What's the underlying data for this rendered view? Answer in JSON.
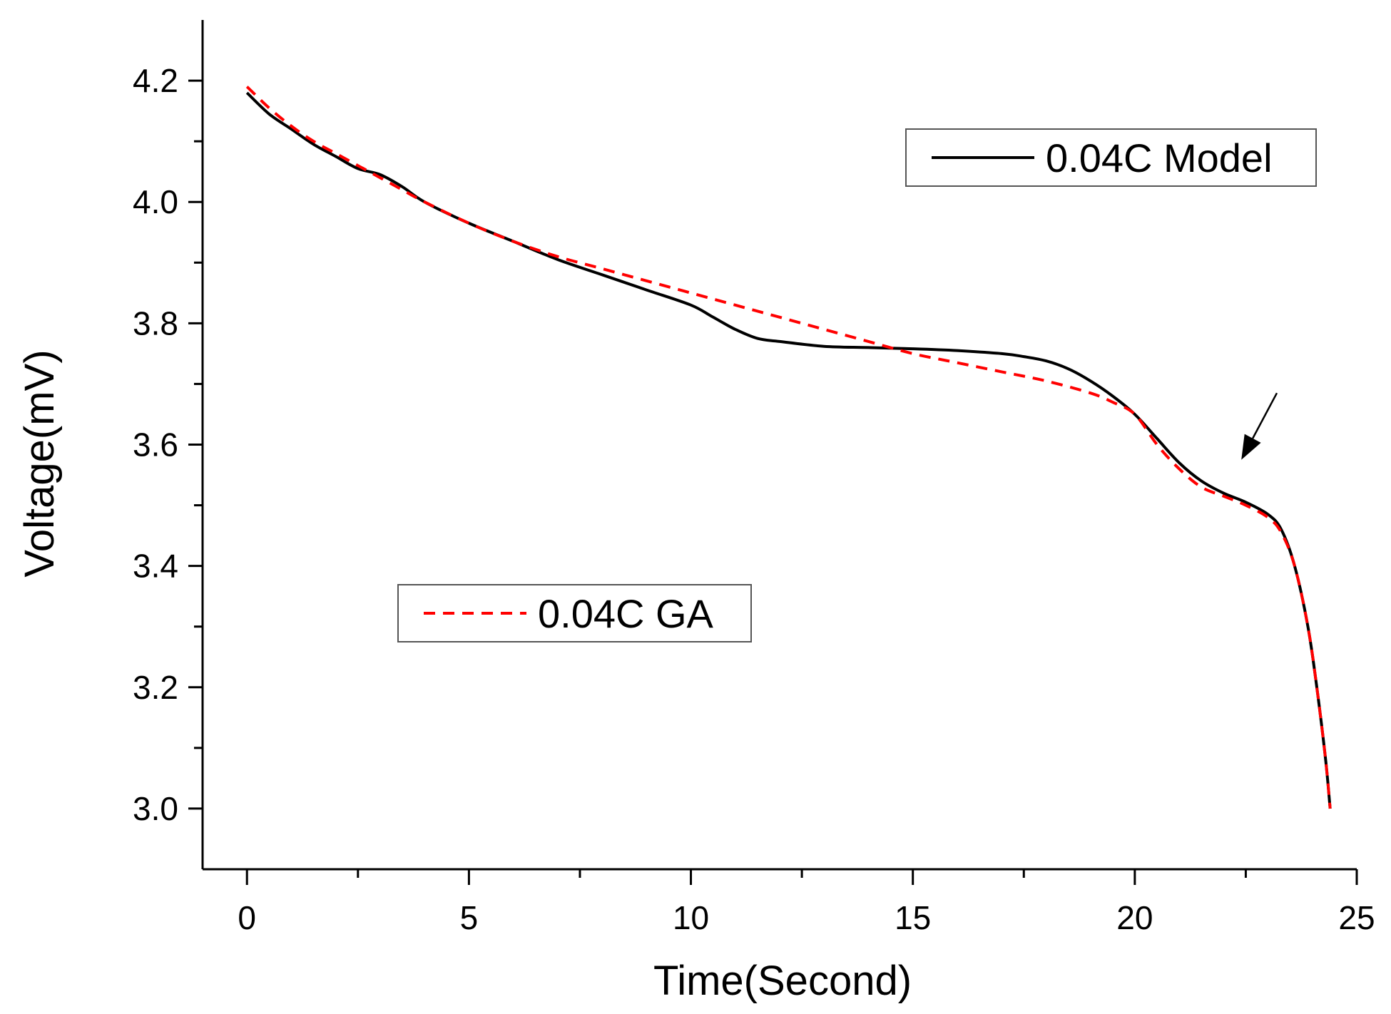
{
  "chart_data": {
    "type": "line",
    "title": "",
    "xlabel": "Time(Second)",
    "ylabel": "Voltage(mV)",
    "xlim": [
      -1,
      25
    ],
    "ylim": [
      2.9,
      4.3
    ],
    "xticks": [
      0,
      5,
      10,
      15,
      20,
      25
    ],
    "xtick_labels": [
      "0",
      "5",
      "10",
      "15",
      "20",
      "25"
    ],
    "yticks": [
      3.0,
      3.2,
      3.4,
      3.6,
      3.8,
      4.0,
      4.2
    ],
    "ytick_labels": [
      "3.0",
      "3.2",
      "3.4",
      "3.6",
      "3.8",
      "4.0",
      "4.2"
    ],
    "grid": false,
    "series": [
      {
        "name": "0.04C Model",
        "style": "solid",
        "color": "#000000",
        "x": [
          0,
          0.5,
          1,
          1.5,
          2,
          2.5,
          3,
          3.5,
          4,
          5,
          6,
          7,
          8,
          9,
          10,
          10.5,
          11,
          11.5,
          12,
          13,
          14,
          15,
          16,
          17,
          17.5,
          18,
          18.5,
          19,
          19.5,
          20,
          20.5,
          21,
          21.5,
          22,
          22.5,
          23,
          23.3,
          23.6,
          23.9,
          24.1,
          24.3,
          24.4
        ],
        "y": [
          4.18,
          4.145,
          4.12,
          4.095,
          4.075,
          4.055,
          4.045,
          4.025,
          4.0,
          3.965,
          3.935,
          3.905,
          3.88,
          3.855,
          3.83,
          3.81,
          3.79,
          3.775,
          3.77,
          3.762,
          3.76,
          3.758,
          3.755,
          3.75,
          3.745,
          3.738,
          3.725,
          3.705,
          3.68,
          3.65,
          3.61,
          3.57,
          3.54,
          3.52,
          3.505,
          3.485,
          3.46,
          3.4,
          3.3,
          3.2,
          3.08,
          3.0
        ]
      },
      {
        "name": "0.04C GA",
        "style": "dashed",
        "color": "#ff0000",
        "x": [
          0,
          0.5,
          1,
          1.5,
          2,
          2.5,
          3,
          3.5,
          4,
          5,
          6,
          7,
          8,
          9,
          10,
          11,
          12,
          13,
          14,
          15,
          16,
          17,
          18,
          19,
          19.5,
          20,
          20.5,
          21,
          21.5,
          22,
          22.5,
          23,
          23.3,
          23.6,
          23.9,
          24.1,
          24.3,
          24.4
        ],
        "y": [
          4.19,
          4.155,
          4.125,
          4.1,
          4.08,
          4.06,
          4.04,
          4.02,
          4.0,
          3.965,
          3.935,
          3.91,
          3.89,
          3.87,
          3.85,
          3.83,
          3.81,
          3.79,
          3.77,
          3.75,
          3.735,
          3.72,
          3.705,
          3.685,
          3.67,
          3.65,
          3.6,
          3.56,
          3.53,
          3.515,
          3.5,
          3.48,
          3.455,
          3.4,
          3.3,
          3.2,
          3.08,
          3.0
        ]
      }
    ],
    "legends": [
      {
        "label": "0.04C Model",
        "series": "0.04C Model",
        "placement": "top-right"
      },
      {
        "label": "0.04C GA",
        "series": "0.04C GA",
        "placement": "lower-left"
      }
    ],
    "annotations": [
      {
        "type": "arrow",
        "from": [
          23.2,
          3.685
        ],
        "to": [
          22.4,
          3.575
        ]
      }
    ]
  }
}
